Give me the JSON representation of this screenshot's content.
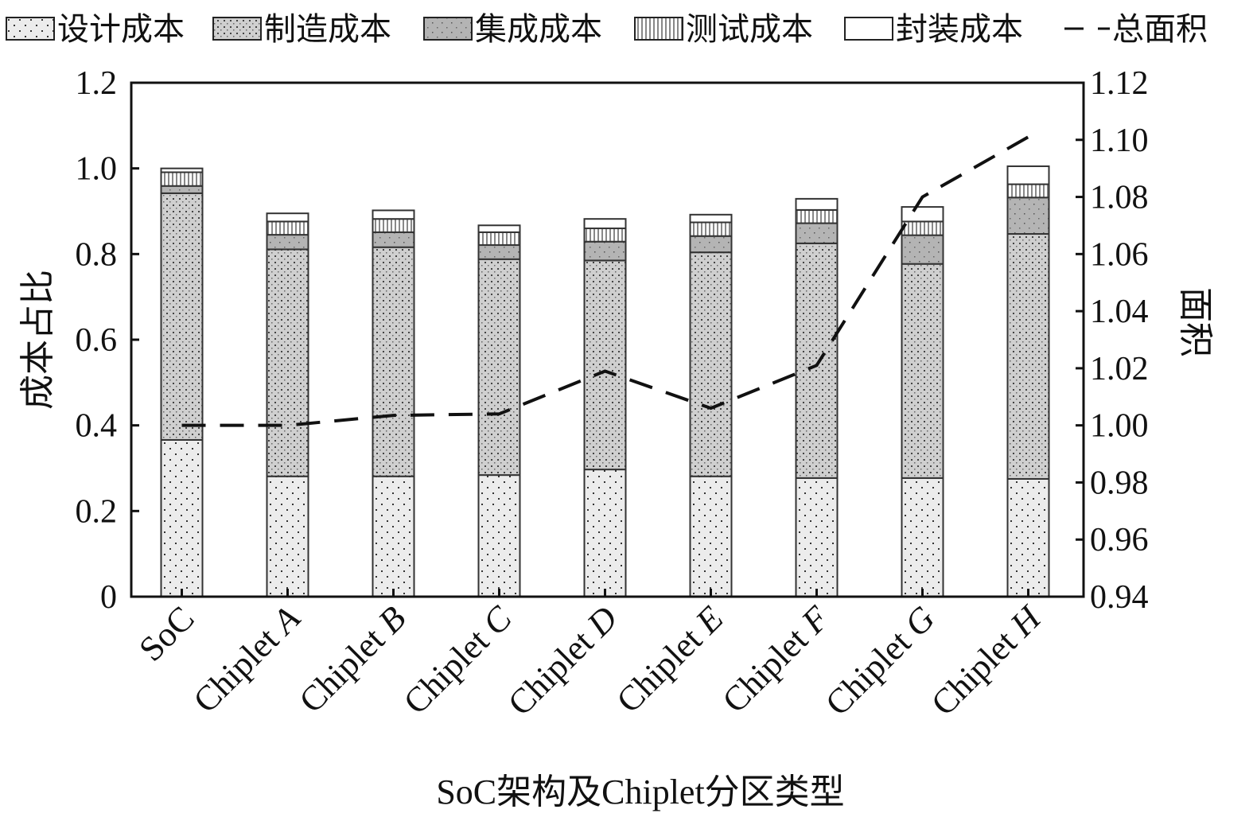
{
  "chart_data": {
    "type": "bar",
    "stacked": true,
    "categories": [
      "SoC",
      "Chiplet A",
      "Chiplet B",
      "Chiplet C",
      "Chiplet D",
      "Chiplet E",
      "Chiplet F",
      "Chiplet G",
      "Chiplet H"
    ],
    "series": [
      {
        "name": "设计成本",
        "values": [
          0.366,
          0.281,
          0.281,
          0.284,
          0.297,
          0.281,
          0.277,
          0.277,
          0.275
        ]
      },
      {
        "name": "制造成本",
        "values": [
          0.576,
          0.53,
          0.535,
          0.504,
          0.488,
          0.523,
          0.548,
          0.5,
          0.572
        ]
      },
      {
        "name": "集成成本",
        "values": [
          0.017,
          0.034,
          0.035,
          0.033,
          0.044,
          0.038,
          0.047,
          0.067,
          0.085
        ]
      },
      {
        "name": "测试成本",
        "values": [
          0.032,
          0.031,
          0.031,
          0.03,
          0.031,
          0.032,
          0.031,
          0.032,
          0.031
        ]
      },
      {
        "name": "封装成本",
        "values": [
          0.009,
          0.019,
          0.02,
          0.016,
          0.022,
          0.018,
          0.026,
          0.034,
          0.042
        ]
      }
    ],
    "line_series": {
      "name": "总面积",
      "axis": "right",
      "style": "dashed",
      "values": [
        1.0,
        1.0,
        1.0035,
        1.004,
        1.019,
        1.006,
        1.021,
        1.08,
        1.101
      ]
    },
    "xlabel": "SoC架构及Chiplet分区类型",
    "ylabel": "成本占比",
    "ylabel_right": "面积",
    "ylim": [
      0,
      1.2
    ],
    "ylim_right": [
      0.94,
      1.12
    ],
    "yticks": [
      "0",
      "0.2",
      "0.4",
      "0.6",
      "0.8",
      "1.0",
      "1.2"
    ],
    "yticks_right": [
      "0.94",
      "0.96",
      "0.98",
      "1.00",
      "1.02",
      "1.04",
      "1.06",
      "1.08",
      "1.10",
      "1.12"
    ],
    "legend_position": "top",
    "grid": false
  }
}
